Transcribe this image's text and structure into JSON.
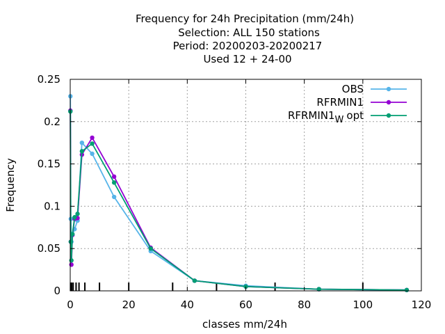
{
  "chart_data": {
    "type": "line",
    "title_lines": [
      "Frequency  for 24h Precipitation (mm/24h)",
      "Selection: ALL    150 stations",
      "Period: 20200203-20200217",
      "Used  12 + 24-00"
    ],
    "xlabel": "classes mm/24h",
    "ylabel": "Frequency",
    "xlim": [
      0,
      120
    ],
    "ylim": [
      0,
      0.25
    ],
    "x_ticks": [
      0,
      20,
      40,
      60,
      80,
      100,
      120
    ],
    "y_ticks": [
      0,
      0.05,
      0.1,
      0.15,
      0.2,
      0.25
    ],
    "x_tick_labels": [
      "0",
      "20",
      "40",
      "60",
      "80",
      "100",
      "120"
    ],
    "y_tick_labels": [
      "0",
      "0.05",
      "0.1",
      "0.15",
      "0.2",
      "0.25"
    ],
    "grid": true,
    "legend_position": "top-right",
    "class_boundaries": [
      0.1,
      0.3,
      0.5,
      1,
      2,
      3,
      5,
      10,
      20,
      35,
      50,
      70,
      100
    ],
    "series": [
      {
        "name": "OBS",
        "color": "#56b4e9",
        "x": [
          0.05,
          0.2,
          0.4,
          0.75,
          1.5,
          2.5,
          4,
          7.5,
          15,
          27.5,
          42.5,
          60,
          85,
          115
        ],
        "y": [
          0.23,
          0.085,
          0.058,
          0.066,
          0.073,
          0.083,
          0.175,
          0.162,
          0.111,
          0.047,
          0.012,
          0.006,
          0.002,
          0.001
        ]
      },
      {
        "name": "RFRMIN1",
        "color": "#9400d3",
        "x": [
          0.05,
          0.2,
          0.4,
          0.75,
          1.5,
          2.5,
          4,
          7.5,
          15,
          27.5,
          42.5,
          60,
          85,
          115
        ],
        "y": [
          0.213,
          0.058,
          0.031,
          0.066,
          0.085,
          0.086,
          0.161,
          0.181,
          0.135,
          0.051,
          0.012,
          0.005,
          0.002,
          0.001
        ]
      },
      {
        "name_base": "RFRMIN1",
        "name_sub": "W",
        "name_suffix": "opt",
        "color": "#009e73",
        "x": [
          0.05,
          0.2,
          0.4,
          0.75,
          1.5,
          2.5,
          4,
          7.5,
          15,
          27.5,
          42.5,
          60,
          85,
          115
        ],
        "y": [
          0.212,
          0.058,
          0.036,
          0.067,
          0.087,
          0.091,
          0.165,
          0.174,
          0.128,
          0.05,
          0.012,
          0.005,
          0.002,
          0.001
        ]
      }
    ]
  }
}
